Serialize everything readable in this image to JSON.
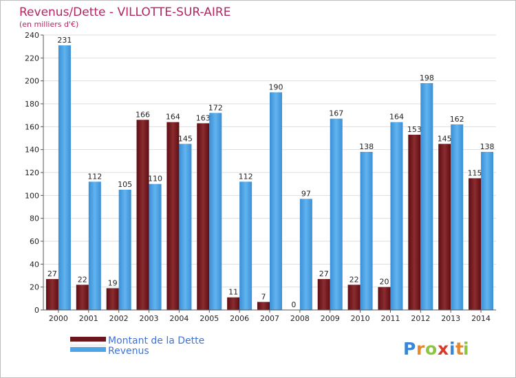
{
  "chart_data": {
    "type": "bar",
    "title": "Revenus/Dette - VILLOTTE-SUR-AIRE",
    "subtitle": "(en milliers d'€)",
    "categories": [
      "2000",
      "2001",
      "2002",
      "2003",
      "2004",
      "2005",
      "2006",
      "2007",
      "2008",
      "2009",
      "2010",
      "2011",
      "2012",
      "2013",
      "2014"
    ],
    "series": [
      {
        "name": "Montant de la Dette",
        "values": [
          27,
          22,
          19,
          166,
          164,
          163,
          11,
          7,
          0,
          27,
          22,
          20,
          153,
          145,
          115
        ],
        "color": "#7a1f22"
      },
      {
        "name": "Revenus",
        "values": [
          231,
          112,
          105,
          110,
          145,
          172,
          112,
          190,
          97,
          167,
          138,
          164,
          198,
          162,
          138
        ],
        "color": "#4da5e8"
      }
    ],
    "ylim": [
      0,
      240
    ],
    "yticks": [
      0,
      20,
      40,
      60,
      80,
      100,
      120,
      140,
      160,
      180,
      200,
      220,
      240
    ],
    "grid": true,
    "legend_position": "bottom-left"
  },
  "logo": {
    "letters": [
      "P",
      "r",
      "o",
      "x",
      "i",
      "t",
      "i"
    ],
    "colors": [
      "#3a86d6",
      "#e8862a",
      "#8cc63e",
      "#d83a2a",
      "#3a86d6",
      "#e8862a",
      "#8cc63e"
    ]
  }
}
